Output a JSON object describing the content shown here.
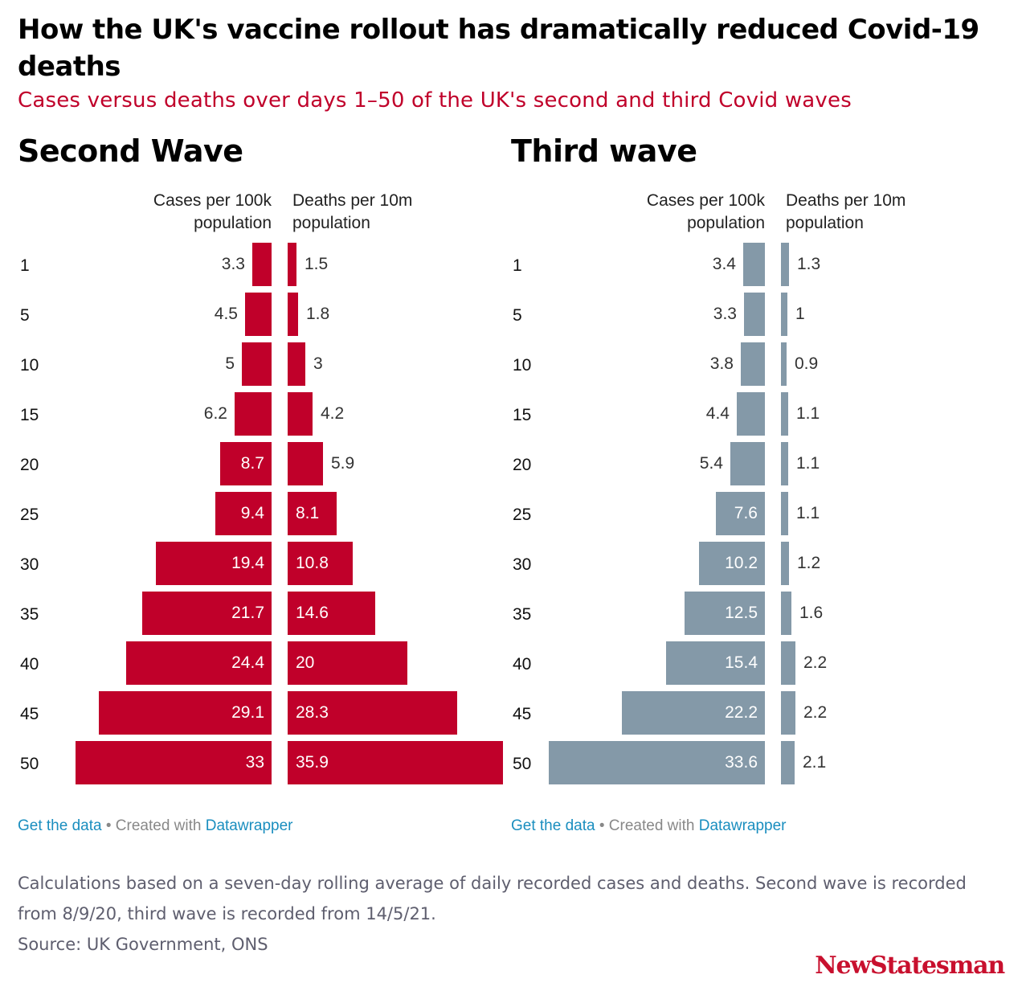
{
  "header": {
    "title": "How the UK's vaccine rollout has dramatically reduced Covid-19 deaths",
    "subtitle": "Cases versus deaths over days 1–50 of the UK's second and third Covid waves"
  },
  "chart_data": [
    {
      "type": "bar",
      "title": "Second Wave",
      "color": "#c0002a",
      "categories": [
        "1",
        "5",
        "10",
        "15",
        "20",
        "25",
        "30",
        "35",
        "40",
        "45",
        "50"
      ],
      "series": [
        {
          "name": "Cases per 100k population",
          "values": [
            3.3,
            4.5,
            5,
            6.2,
            8.7,
            9.4,
            19.4,
            21.7,
            24.4,
            29.1,
            33
          ]
        },
        {
          "name": "Deaths per 10m population",
          "values": [
            1.5,
            1.8,
            3,
            4.2,
            5.9,
            8.1,
            10.8,
            14.6,
            20,
            28.3,
            35.9
          ]
        }
      ]
    },
    {
      "type": "bar",
      "title": "Third wave",
      "color": "#8499a8",
      "categories": [
        "1",
        "5",
        "10",
        "15",
        "20",
        "25",
        "30",
        "35",
        "40",
        "45",
        "50"
      ],
      "series": [
        {
          "name": "Cases per 100k population",
          "values": [
            3.4,
            3.3,
            3.8,
            4.4,
            5.4,
            7.6,
            10.2,
            12.5,
            15.4,
            22.2,
            33.6
          ]
        },
        {
          "name": "Deaths per 10m population",
          "values": [
            1.3,
            1,
            0.9,
            1.1,
            1.1,
            1.1,
            1.2,
            1.6,
            2.2,
            2.2,
            2.1
          ]
        }
      ]
    }
  ],
  "panels": [
    {
      "cases_head_1": "Cases per 100k",
      "cases_head_2": "population",
      "deaths_head_1": "Deaths per 10m",
      "deaths_head_2": "population"
    },
    {
      "cases_head_1": "Cases per 100k",
      "cases_head_2": "population",
      "deaths_head_1": "Deaths per 10m",
      "deaths_head_2": "population"
    }
  ],
  "footer": {
    "get_data": "Get the data",
    "separator": " • Created with ",
    "datawrapper": "Datawrapper",
    "note": "Calculations based on a seven-day rolling average of daily recorded cases and deaths. Second wave is recorded from 8/9/20, third wave is recorded from 14/5/21.",
    "source": "Source: UK Government, ONS",
    "brand": "NewStatesman"
  }
}
